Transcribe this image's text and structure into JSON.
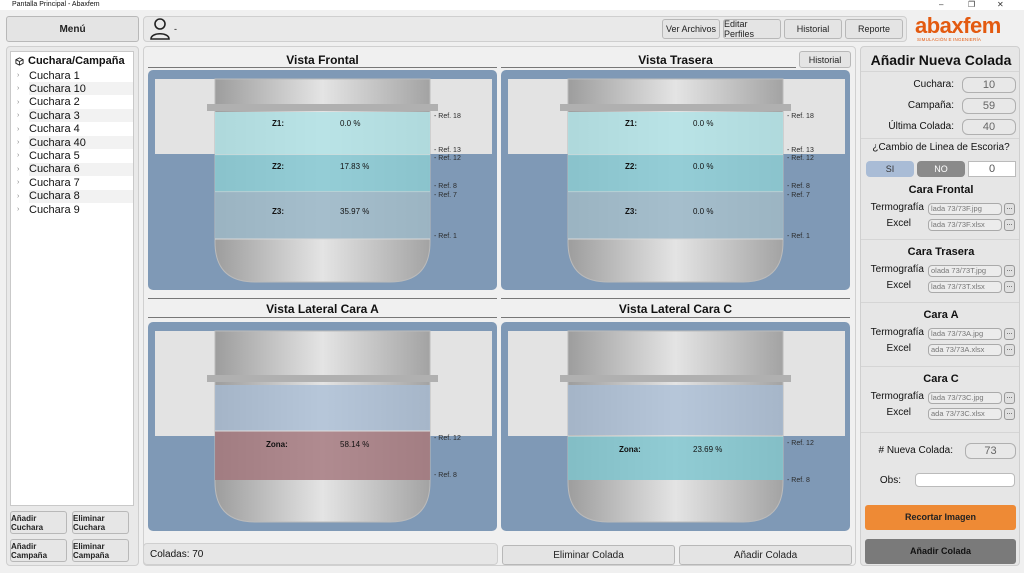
{
  "window": {
    "title": "Pantalla Principal - Abaxfem",
    "minimize": "–",
    "maximize": "❐",
    "close": "✕"
  },
  "header": {
    "menu_label": "Menú",
    "user_name": "-",
    "buttons": [
      "Ver Archivos",
      "Editar Perfiles",
      "Historial",
      "Reporte"
    ],
    "logo_main": "abaxfem",
    "logo_sub": "SIMULACIÓN E INGENIERÍA",
    "logo_color": "#e35a10"
  },
  "sidebar": {
    "root_label": "Cuchara/Campaña",
    "items": [
      "Cuchara 1",
      "Cuchara 10",
      "Cuchara 2",
      "Cuchara 3",
      "Cuchara 4",
      "Cuchara 40",
      "Cuchara 5",
      "Cuchara 6",
      "Cuchara 7",
      "Cuchara 8",
      "Cuchara 9"
    ],
    "buttons": [
      "Añadir Cuchara",
      "Eliminar Cuchara",
      "Añadir Campaña",
      "Eliminar Campaña"
    ]
  },
  "views": {
    "frontal": {
      "title": "Vista Frontal",
      "zones": [
        {
          "label": "Z1:",
          "value": "0.0 %"
        },
        {
          "label": "Z2:",
          "value": "17.83 %"
        },
        {
          "label": "Z3:",
          "value": "35.97 %"
        }
      ],
      "refs": [
        "- Ref. 18",
        "- Ref. 13",
        "- Ref. 12",
        "- Ref. 8",
        "- Ref. 7",
        "- Ref. 1"
      ]
    },
    "trasera": {
      "title": "Vista Trasera",
      "historial_button": "Historial",
      "zones": [
        {
          "label": "Z1:",
          "value": "0.0 %"
        },
        {
          "label": "Z2:",
          "value": "0.0 %"
        },
        {
          "label": "Z3:",
          "value": "0.0 %"
        }
      ],
      "refs": [
        "- Ref. 18",
        "- Ref. 13",
        "- Ref. 12",
        "- Ref. 8",
        "- Ref. 7",
        "- Ref. 1"
      ]
    },
    "lateral_a": {
      "title": "Vista Lateral Cara A",
      "zone": {
        "label": "Zona:",
        "value": "58.14 %"
      },
      "refs": [
        "- Ref. 12",
        "- Ref. 8"
      ]
    },
    "lateral_c": {
      "title": "Vista Lateral Cara C",
      "zone": {
        "label": "Zona:",
        "value": "23.69 %"
      },
      "refs": [
        "- Ref. 12",
        "- Ref. 8"
      ]
    }
  },
  "footer": {
    "coladas": "Coladas: 70",
    "delete_button": "Eliminar Colada",
    "add_button": "Añadir Colada"
  },
  "form": {
    "title": "Añadir Nueva Colada",
    "cuchara_label": "Cuchara:",
    "cuchara_value": "10",
    "campana_label": "Campaña:",
    "campana_value": "59",
    "ultima_label": "Última Colada:",
    "ultima_value": "40",
    "escoria_label": "¿Cambio de Linea de Escoria?",
    "si_label": "SI",
    "no_label": "NO",
    "escoria_value": "0",
    "sections": [
      {
        "title": "Cara Frontal",
        "termografia": "lada 73/73F.jpg",
        "excel": "lada 73/73F.xlsx"
      },
      {
        "title": "Cara Trasera",
        "termografia": "olada 73/73T.jpg",
        "excel": "lada 73/73T.xlsx"
      },
      {
        "title": "Cara A",
        "termografia": "lada 73/73A.jpg",
        "excel": "ada 73/73A.xlsx"
      },
      {
        "title": "Cara C",
        "termografia": "lada 73/73C.jpg",
        "excel": "ada 73/73C.xlsx"
      }
    ],
    "termografia_label": "Termografía",
    "excel_label": "Excel",
    "browse_label": "...",
    "nueva_label": "# Nueva Colada:",
    "nueva_value": "73",
    "obs_label": "Obs:",
    "obs_value": "",
    "recortar_button": "Recortar Imagen",
    "anadir_button": "Añadir Colada",
    "colors": {
      "si": "#a9bcd6",
      "no": "#8a8a8a",
      "recortar": "#ee8a35",
      "anadir": "#7a7a7a"
    }
  }
}
